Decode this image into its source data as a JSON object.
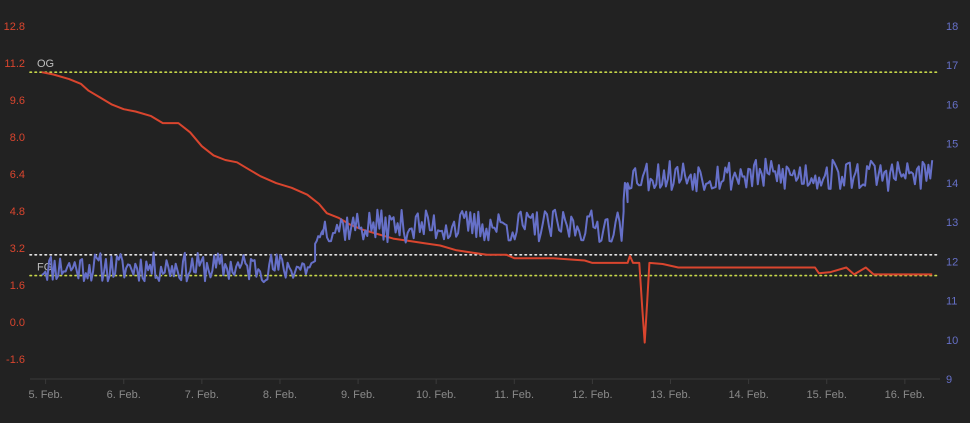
{
  "chart_data": {
    "type": "line",
    "title": "",
    "x_ticks": [
      "5. Feb.",
      "6. Feb.",
      "7. Feb.",
      "8. Feb.",
      "9. Feb.",
      "10. Feb.",
      "11. Feb.",
      "12. Feb.",
      "13. Feb.",
      "14. Feb.",
      "15. Feb.",
      "16. Feb."
    ],
    "x_range": [
      4.8,
      16.45
    ],
    "y_left": {
      "ticks": [
        "12.8",
        "11.2",
        "9.6",
        "8.0",
        "6.4",
        "4.8",
        "3.2",
        "1.6",
        "0.0",
        "-1.6"
      ],
      "range": [
        -2.0,
        12.8
      ],
      "color": "#d9452e"
    },
    "y_right": {
      "ticks": [
        "18",
        "17",
        "16",
        "15",
        "14",
        "13",
        "12",
        "11",
        "10",
        "9"
      ],
      "range": [
        9,
        18
      ],
      "color": "#6670c8"
    },
    "reference_lines": [
      {
        "label": "OG",
        "axis": "left",
        "value": 10.8,
        "color": "#c8d84a"
      },
      {
        "label": "",
        "axis": "left",
        "value": 2.9,
        "color": "#e6e6e6"
      },
      {
        "label": "FG",
        "axis": "left",
        "value": 2.0,
        "color": "#c8d84a"
      }
    ],
    "series": [
      {
        "axis": "left",
        "color": "#d9452e",
        "points": [
          [
            4.95,
            10.8
          ],
          [
            5.1,
            10.7
          ],
          [
            5.3,
            10.5
          ],
          [
            5.45,
            10.3
          ],
          [
            5.55,
            10.0
          ],
          [
            5.7,
            9.7
          ],
          [
            5.85,
            9.4
          ],
          [
            6.0,
            9.2
          ],
          [
            6.15,
            9.1
          ],
          [
            6.35,
            8.9
          ],
          [
            6.5,
            8.6
          ],
          [
            6.7,
            8.6
          ],
          [
            6.85,
            8.2
          ],
          [
            7.0,
            7.6
          ],
          [
            7.15,
            7.2
          ],
          [
            7.3,
            7.0
          ],
          [
            7.45,
            6.9
          ],
          [
            7.6,
            6.6
          ],
          [
            7.75,
            6.3
          ],
          [
            7.95,
            6.0
          ],
          [
            8.15,
            5.8
          ],
          [
            8.35,
            5.5
          ],
          [
            8.5,
            5.1
          ],
          [
            8.6,
            4.7
          ],
          [
            8.75,
            4.5
          ],
          [
            8.9,
            4.2
          ],
          [
            9.05,
            4.0
          ],
          [
            9.25,
            3.8
          ],
          [
            9.45,
            3.6
          ],
          [
            9.65,
            3.5
          ],
          [
            9.85,
            3.4
          ],
          [
            10.05,
            3.3
          ],
          [
            10.25,
            3.1
          ],
          [
            10.45,
            3.0
          ],
          [
            10.65,
            2.9
          ],
          [
            10.9,
            2.9
          ],
          [
            11.0,
            2.75
          ],
          [
            11.5,
            2.75
          ],
          [
            11.9,
            2.65
          ],
          [
            12.0,
            2.55
          ],
          [
            12.45,
            2.55
          ],
          [
            12.48,
            2.85
          ],
          [
            12.52,
            2.55
          ],
          [
            12.6,
            2.55
          ],
          [
            12.64,
            0.5
          ],
          [
            12.67,
            -0.9
          ],
          [
            12.7,
            0.8
          ],
          [
            12.73,
            2.55
          ],
          [
            12.9,
            2.5
          ],
          [
            13.1,
            2.35
          ],
          [
            13.6,
            2.35
          ],
          [
            14.2,
            2.35
          ],
          [
            14.85,
            2.35
          ],
          [
            14.9,
            2.1
          ],
          [
            15.05,
            2.15
          ],
          [
            15.25,
            2.35
          ],
          [
            15.35,
            2.05
          ],
          [
            15.5,
            2.35
          ],
          [
            15.6,
            2.05
          ],
          [
            16.0,
            2.05
          ],
          [
            16.35,
            2.05
          ]
        ]
      },
      {
        "axis": "right",
        "color": "#6670c8",
        "segments": [
          {
            "start": 4.95,
            "end": 8.45,
            "base": 11.85,
            "amp": 0.38,
            "n": 150,
            "seed": 11
          },
          {
            "start": 8.45,
            "end": 8.55,
            "base": 12.6,
            "amp": 0.3,
            "n": 6,
            "seed": 23
          },
          {
            "start": 8.55,
            "end": 12.4,
            "base": 12.9,
            "amp": 0.42,
            "n": 150,
            "seed": 37
          },
          {
            "start": 12.4,
            "end": 12.45,
            "base": 13.7,
            "amp": 0.3,
            "n": 4,
            "seed": 41
          },
          {
            "start": 12.45,
            "end": 16.35,
            "base": 14.2,
            "amp": 0.42,
            "n": 160,
            "seed": 53
          }
        ]
      }
    ]
  }
}
